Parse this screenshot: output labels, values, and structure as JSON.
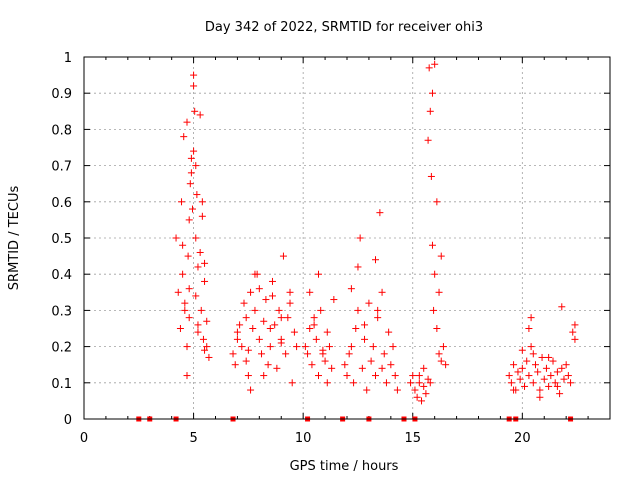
{
  "chart_data": {
    "type": "scatter",
    "title": "Day 342 of 2022, SRMTID for receiver ohi3",
    "xlabel": "GPS time / hours",
    "ylabel": "SRMTID / TECUs",
    "xlim": [
      0,
      24
    ],
    "ylim": [
      0,
      1
    ],
    "x_ticks": [
      "0",
      "5",
      "10",
      "15",
      "20"
    ],
    "y_ticks": [
      "0",
      "0.1",
      "0.2",
      "0.3",
      "0.4",
      "0.5",
      "0.6",
      "0.7",
      "0.8",
      "0.9",
      "1"
    ],
    "grid": true,
    "marker": "+",
    "marker_color": "#ff0000",
    "baseline_markers_x": [
      2.5,
      3.0,
      4.2,
      6.8,
      10.2,
      11.8,
      13.0,
      14.6,
      15.1,
      19.4,
      19.7,
      22.2
    ],
    "series": [
      {
        "name": "SRMTID",
        "x": [
          4.2,
          4.3,
          4.4,
          4.45,
          4.5,
          4.55,
          4.6,
          4.7,
          4.75,
          4.8,
          4.85,
          4.9,
          4.95,
          5.0,
          5.05,
          5.1,
          5.15,
          5.2,
          5.3,
          5.35,
          5.4,
          5.45,
          5.5,
          5.6,
          5.7,
          4.5,
          4.6,
          4.7,
          4.8,
          4.9,
          5.0,
          5.1,
          5.2,
          5.3,
          5.4,
          5.5,
          4.7,
          4.8,
          5.0,
          5.1,
          5.2,
          5.5,
          5.6,
          6.8,
          6.9,
          7.0,
          7.1,
          7.2,
          7.3,
          7.4,
          7.5,
          7.6,
          7.7,
          7.8,
          7.9,
          8.0,
          8.1,
          8.2,
          8.3,
          8.4,
          8.5,
          8.6,
          8.7,
          8.8,
          8.9,
          9.0,
          9.1,
          9.2,
          9.3,
          9.4,
          9.5,
          9.6,
          9.7,
          7.4,
          7.6,
          7.8,
          8.2,
          8.6,
          9.0,
          9.4,
          7.0,
          7.5,
          8.0,
          8.5,
          9.0,
          10.1,
          10.2,
          10.3,
          10.4,
          10.5,
          10.6,
          10.7,
          10.8,
          10.9,
          11.0,
          11.1,
          11.2,
          11.3,
          11.4,
          10.3,
          10.7,
          11.1,
          10.5,
          10.9,
          11.9,
          12.0,
          12.1,
          12.2,
          12.3,
          12.4,
          12.5,
          12.6,
          12.7,
          12.8,
          12.9,
          13.0,
          13.1,
          13.2,
          13.3,
          13.4,
          13.5,
          13.6,
          13.7,
          13.8,
          13.9,
          14.0,
          14.1,
          14.2,
          14.3,
          12.5,
          13.3,
          13.4,
          12.2,
          12.8,
          13.6,
          14.9,
          15.0,
          15.1,
          15.2,
          15.3,
          15.4,
          15.5,
          15.6,
          15.7,
          15.8,
          15.9,
          16.0,
          16.1,
          16.2,
          16.3,
          16.4,
          16.5,
          15.7,
          15.75,
          15.8,
          15.85,
          15.9,
          15.95,
          16.0,
          16.1,
          16.2,
          15.3,
          15.5,
          16.3,
          19.4,
          19.5,
          19.6,
          19.7,
          19.8,
          19.9,
          20.0,
          20.1,
          20.2,
          20.3,
          20.4,
          20.5,
          20.6,
          20.7,
          20.8,
          20.9,
          21.0,
          21.1,
          21.2,
          21.3,
          21.4,
          21.5,
          21.6,
          21.7,
          21.8,
          21.9,
          22.0,
          22.1,
          22.2,
          22.3,
          22.4,
          20.3,
          20.4,
          20.5,
          21.8,
          22.4,
          19.6,
          20.0,
          20.8,
          21.2,
          21.6
        ],
        "y": [
          0.5,
          0.35,
          0.25,
          0.6,
          0.48,
          0.78,
          0.32,
          0.2,
          0.45,
          0.28,
          0.65,
          0.72,
          0.58,
          0.95,
          0.85,
          0.5,
          0.62,
          0.42,
          0.84,
          0.3,
          0.56,
          0.22,
          0.38,
          0.27,
          0.17,
          0.4,
          0.3,
          0.12,
          0.55,
          0.68,
          0.74,
          0.34,
          0.26,
          0.46,
          0.6,
          0.19,
          0.82,
          0.36,
          0.92,
          0.7,
          0.24,
          0.43,
          0.2,
          0.18,
          0.15,
          0.22,
          0.26,
          0.2,
          0.32,
          0.28,
          0.12,
          0.35,
          0.25,
          0.3,
          0.4,
          0.22,
          0.18,
          0.27,
          0.33,
          0.15,
          0.2,
          0.38,
          0.26,
          0.14,
          0.3,
          0.22,
          0.45,
          0.18,
          0.28,
          0.35,
          0.1,
          0.24,
          0.2,
          0.16,
          0.08,
          0.4,
          0.12,
          0.34,
          0.28,
          0.32,
          0.24,
          0.19,
          0.36,
          0.25,
          0.21,
          0.2,
          0.18,
          0.25,
          0.15,
          0.28,
          0.22,
          0.12,
          0.3,
          0.18,
          0.16,
          0.24,
          0.2,
          0.14,
          0.33,
          0.35,
          0.4,
          0.1,
          0.26,
          0.19,
          0.15,
          0.12,
          0.18,
          0.2,
          0.1,
          0.25,
          0.3,
          0.5,
          0.14,
          0.22,
          0.08,
          0.32,
          0.16,
          0.2,
          0.12,
          0.28,
          0.57,
          0.35,
          0.18,
          0.1,
          0.24,
          0.15,
          0.2,
          0.12,
          0.08,
          0.42,
          0.44,
          0.3,
          0.36,
          0.26,
          0.14,
          0.1,
          0.12,
          0.08,
          0.06,
          0.1,
          0.05,
          0.14,
          0.07,
          0.11,
          0.1,
          0.9,
          0.98,
          0.6,
          0.35,
          0.45,
          0.2,
          0.15,
          0.77,
          0.97,
          0.85,
          0.67,
          0.48,
          0.3,
          0.4,
          0.25,
          0.18,
          0.12,
          0.09,
          0.16,
          0.12,
          0.1,
          0.15,
          0.08,
          0.13,
          0.11,
          0.14,
          0.09,
          0.16,
          0.12,
          0.2,
          0.1,
          0.15,
          0.13,
          0.08,
          0.17,
          0.11,
          0.14,
          0.09,
          0.12,
          0.16,
          0.1,
          0.13,
          0.07,
          0.14,
          0.11,
          0.15,
          0.12,
          0.1,
          0.24,
          0.22,
          0.25,
          0.28,
          0.18,
          0.31,
          0.26,
          0.08,
          0.19,
          0.06,
          0.17,
          0.09
        ]
      }
    ]
  }
}
